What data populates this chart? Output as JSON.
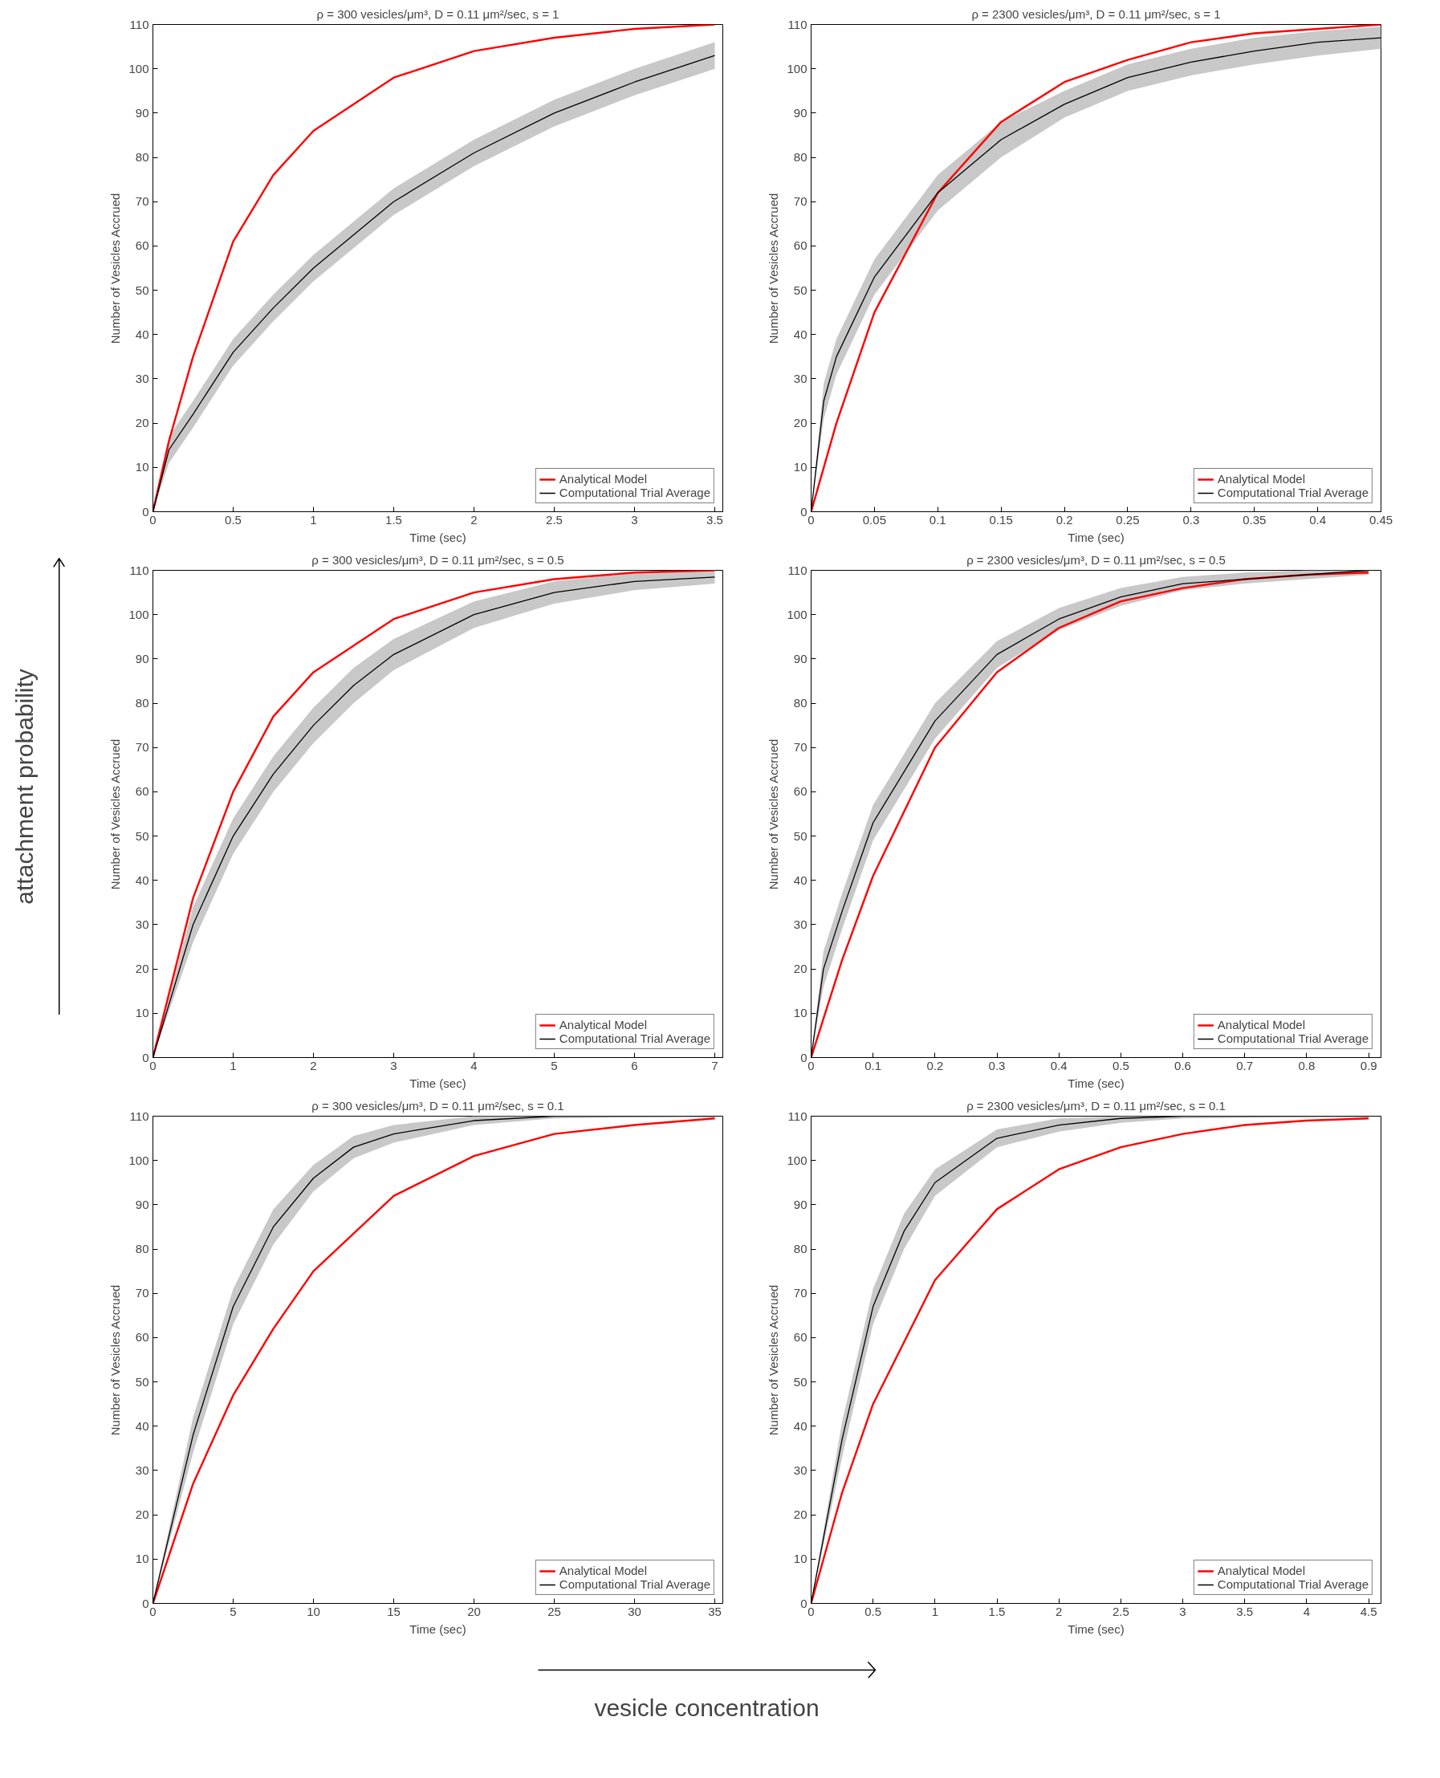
{
  "chart_data": [
    {
      "type": "line",
      "title": "ρ = 300 vesicles/μm³, D = 0.11 μm²/sec, s = 1",
      "xlabel": "Time (sec)",
      "ylabel": "Number of Vesicles Accrued",
      "xlim": [
        0,
        3.55
      ],
      "ylim": [
        0,
        110
      ],
      "xticks": [
        0,
        0.5,
        1,
        1.5,
        2,
        2.5,
        3,
        3.5
      ],
      "yticks": [
        0,
        10,
        20,
        30,
        40,
        50,
        60,
        70,
        80,
        90,
        100,
        110
      ],
      "grid": false,
      "legend": "bottom right",
      "series": [
        {
          "name": "Analytical Model",
          "color": "#ff0000",
          "x": [
            0,
            0.1,
            0.25,
            0.5,
            0.75,
            1,
            1.5,
            2,
            2.5,
            3,
            3.5
          ],
          "values": [
            0,
            16,
            35,
            61,
            76,
            86,
            98,
            104,
            107,
            109,
            110
          ]
        },
        {
          "name": "Computational Trial Average",
          "color": "#000000",
          "x": [
            0,
            0.1,
            0.25,
            0.5,
            0.75,
            1,
            1.5,
            2,
            2.5,
            3,
            3.5
          ],
          "values": [
            0,
            14,
            22,
            36,
            46,
            55,
            70,
            81,
            90,
            97,
            103
          ],
          "lower": [
            0,
            11,
            19,
            33,
            43,
            52,
            67,
            78,
            87,
            94,
            100
          ],
          "upper": [
            0,
            17,
            25,
            39,
            49,
            58,
            73,
            84,
            93,
            100,
            106
          ]
        }
      ]
    },
    {
      "type": "line",
      "title": "ρ = 2300 vesicles/μm³, D = 0.11 μm²/sec, s = 1",
      "xlabel": "Time (sec)",
      "ylabel": "Number of Vesicles Accrued",
      "xlim": [
        0,
        0.45
      ],
      "ylim": [
        0,
        110
      ],
      "xticks": [
        0,
        0.05,
        0.1,
        0.15,
        0.2,
        0.25,
        0.3,
        0.35,
        0.4,
        0.45
      ],
      "yticks": [
        0,
        10,
        20,
        30,
        40,
        50,
        60,
        70,
        80,
        90,
        100,
        110
      ],
      "grid": false,
      "legend": "bottom right",
      "series": [
        {
          "name": "Analytical Model",
          "color": "#ff0000",
          "x": [
            0,
            0.02,
            0.05,
            0.1,
            0.15,
            0.2,
            0.25,
            0.3,
            0.35,
            0.4,
            0.45
          ],
          "values": [
            0,
            20,
            45,
            72,
            88,
            97,
            102,
            106,
            108,
            109,
            110
          ]
        },
        {
          "name": "Computational Trial Average",
          "color": "#000000",
          "x": [
            0,
            0.01,
            0.02,
            0.05,
            0.1,
            0.15,
            0.2,
            0.25,
            0.3,
            0.35,
            0.4,
            0.45
          ],
          "values": [
            0,
            25,
            35,
            53,
            72,
            84,
            92,
            98,
            101.5,
            104,
            106,
            107
          ],
          "lower": [
            0,
            21,
            31,
            49,
            68,
            80,
            89,
            95,
            98.5,
            101,
            103,
            104.5
          ],
          "upper": [
            0,
            29,
            39,
            57,
            76,
            88,
            95,
            101,
            104.5,
            107,
            108.5,
            109.5
          ]
        }
      ]
    },
    {
      "type": "line",
      "title": "ρ = 300 vesicles/μm³, D = 0.11 μm²/sec, s = 0.5",
      "xlabel": "Time (sec)",
      "ylabel": "Number of Vesicles Accrued",
      "xlim": [
        0,
        7.1
      ],
      "ylim": [
        0,
        110
      ],
      "xticks": [
        0,
        1,
        2,
        3,
        4,
        5,
        6,
        7
      ],
      "yticks": [
        0,
        10,
        20,
        30,
        40,
        50,
        60,
        70,
        80,
        90,
        100,
        110
      ],
      "grid": false,
      "legend": "bottom right",
      "series": [
        {
          "name": "Analytical Model",
          "color": "#ff0000",
          "x": [
            0,
            0.5,
            1,
            1.5,
            2,
            3,
            4,
            5,
            6,
            7
          ],
          "values": [
            0,
            36,
            60,
            77,
            87,
            99,
            105,
            108,
            109.5,
            110
          ]
        },
        {
          "name": "Computational Trial Average",
          "color": "#000000",
          "x": [
            0,
            0.5,
            1,
            1.5,
            2,
            2.5,
            3,
            4,
            5,
            6,
            7
          ],
          "values": [
            0,
            30,
            50,
            64,
            75,
            84,
            91,
            100,
            105,
            107.5,
            108.5
          ],
          "lower": [
            0,
            26,
            46,
            60,
            71,
            80,
            87.5,
            97,
            102.5,
            105.5,
            107
          ],
          "upper": [
            0,
            34,
            54,
            68,
            79,
            88,
            94.5,
            103,
            107.5,
            109.5,
            110
          ]
        }
      ]
    },
    {
      "type": "line",
      "title": "ρ = 2300 vesicles/μm³, D = 0.11 μm²/sec, s = 0.5",
      "xlabel": "Time (sec)",
      "ylabel": "Number of Vesicles Accrued",
      "xlim": [
        0,
        0.92
      ],
      "ylim": [
        0,
        110
      ],
      "xticks": [
        0,
        0.1,
        0.2,
        0.3,
        0.4,
        0.5,
        0.6,
        0.7,
        0.8,
        0.9
      ],
      "yticks": [
        0,
        10,
        20,
        30,
        40,
        50,
        60,
        70,
        80,
        90,
        100,
        110
      ],
      "grid": false,
      "legend": "bottom right",
      "series": [
        {
          "name": "Analytical Model",
          "color": "#ff0000",
          "x": [
            0,
            0.05,
            0.1,
            0.2,
            0.3,
            0.4,
            0.5,
            0.6,
            0.7,
            0.8,
            0.9
          ],
          "values": [
            0,
            22,
            41,
            70,
            87,
            97,
            103,
            106,
            108,
            109,
            109.5
          ]
        },
        {
          "name": "Computational Trial Average",
          "color": "#000000",
          "x": [
            0,
            0.02,
            0.05,
            0.1,
            0.2,
            0.3,
            0.4,
            0.5,
            0.6,
            0.7,
            0.8,
            0.9
          ],
          "values": [
            0,
            20,
            33,
            53,
            76,
            91,
            99,
            104,
            107,
            108,
            109,
            110
          ],
          "lower": [
            0,
            16,
            29,
            49,
            72,
            88,
            96.5,
            102,
            105.5,
            107,
            108,
            109
          ],
          "upper": [
            0,
            24,
            37,
            57,
            80,
            94,
            101.5,
            106,
            108.5,
            109.5,
            110,
            110
          ]
        }
      ]
    },
    {
      "type": "line",
      "title": "ρ = 300 vesicles/μm³, D = 0.11 μm²/sec, s = 0.1",
      "xlabel": "Time (sec)",
      "ylabel": "Number of Vesicles Accrued",
      "xlim": [
        0,
        35.5
      ],
      "ylim": [
        0,
        110
      ],
      "xticks": [
        0,
        5,
        10,
        15,
        20,
        25,
        30,
        35
      ],
      "yticks": [
        0,
        10,
        20,
        30,
        40,
        50,
        60,
        70,
        80,
        90,
        100,
        110
      ],
      "grid": false,
      "legend": "bottom right",
      "series": [
        {
          "name": "Analytical Model",
          "color": "#ff0000",
          "x": [
            0,
            2.5,
            5,
            7.5,
            10,
            15,
            20,
            25,
            30,
            35
          ],
          "values": [
            0,
            27,
            47,
            62,
            75,
            92,
            101,
            106,
            108,
            109.5
          ]
        },
        {
          "name": "Computational Trial Average",
          "color": "#000000",
          "x": [
            0,
            2.5,
            5,
            7.5,
            10,
            12.5,
            15,
            20,
            25,
            35
          ],
          "values": [
            0,
            38,
            67,
            85,
            96,
            103,
            106,
            109,
            110,
            110
          ],
          "lower": [
            0,
            34,
            63,
            81,
            93,
            100.5,
            104,
            108,
            109.5,
            110
          ],
          "upper": [
            0,
            42,
            71,
            89,
            99,
            105.5,
            108,
            110,
            110,
            110
          ]
        }
      ]
    },
    {
      "type": "line",
      "title": "ρ = 2300 vesicles/μm³, D = 0.11 μm²/sec, s = 0.1",
      "xlabel": "Time (sec)",
      "ylabel": "Number of Vesicles Accrued",
      "xlim": [
        0,
        4.6
      ],
      "ylim": [
        0,
        110
      ],
      "xticks": [
        0,
        0.5,
        1,
        1.5,
        2,
        2.5,
        3,
        3.5,
        4,
        4.5
      ],
      "yticks": [
        0,
        10,
        20,
        30,
        40,
        50,
        60,
        70,
        80,
        90,
        100,
        110
      ],
      "grid": false,
      "legend": "bottom right",
      "series": [
        {
          "name": "Analytical Model",
          "color": "#ff0000",
          "x": [
            0,
            0.25,
            0.5,
            1,
            1.5,
            2,
            2.5,
            3,
            3.5,
            4,
            4.5
          ],
          "values": [
            0,
            25,
            45,
            73,
            89,
            98,
            103,
            106,
            108,
            109,
            109.5
          ]
        },
        {
          "name": "Computational Trial Average",
          "color": "#000000",
          "x": [
            0,
            0.25,
            0.5,
            0.75,
            1,
            1.5,
            2,
            2.5,
            3,
            4.5
          ],
          "values": [
            0,
            37,
            67,
            84,
            95,
            105,
            108,
            109.5,
            110,
            110
          ],
          "lower": [
            0,
            33,
            63,
            80,
            92,
            103,
            106.5,
            108.5,
            109.5,
            110
          ],
          "upper": [
            0,
            41,
            71,
            88,
            98,
            107,
            109.5,
            110,
            110,
            110
          ]
        }
      ]
    },
    {
      "type": "other",
      "annotations": [
        "attachment probability",
        "vesicle concentration"
      ]
    }
  ]
}
